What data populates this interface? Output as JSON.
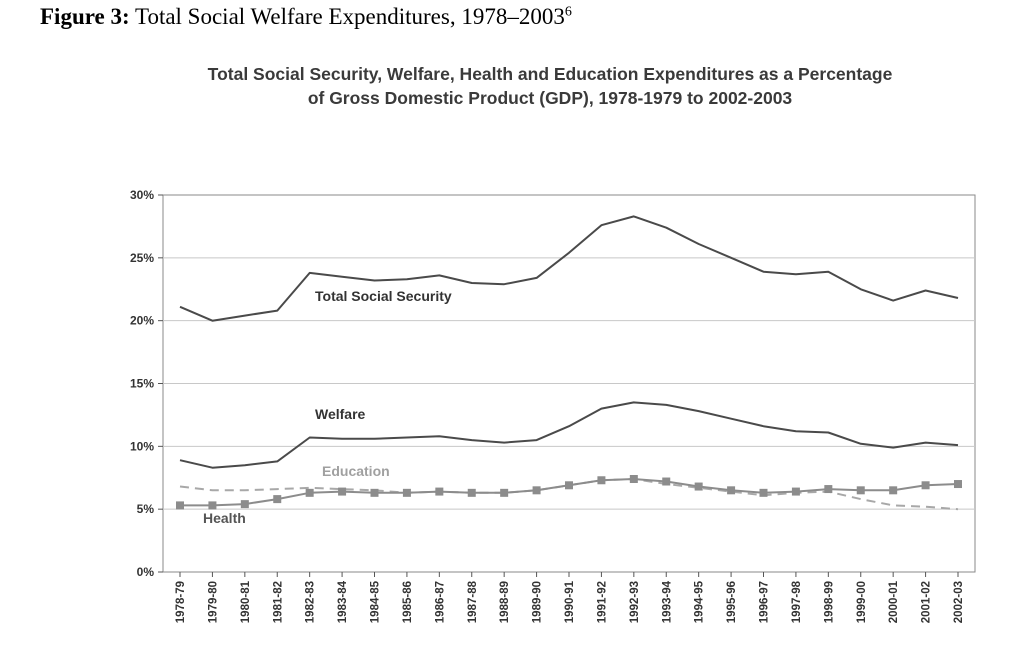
{
  "figure": {
    "label": "Figure 3:",
    "text": "Total Social Welfare Expenditures, 1978–2003",
    "footnote": "6"
  },
  "chart_data": {
    "type": "line",
    "title_lines": [
      "Total Social Security, Welfare, Health and Education Expenditures as a Percentage",
      "of Gross Domestic Product (GDP), 1978-1979 to 2002-2003"
    ],
    "xlabel": "",
    "ylabel": "",
    "ylim": [
      0,
      30
    ],
    "yticks": [
      "0%",
      "5%",
      "10%",
      "15%",
      "20%",
      "25%",
      "30%"
    ],
    "ytick_values": [
      0,
      5,
      10,
      15,
      20,
      25,
      30
    ],
    "grid": true,
    "legend": "inline labels",
    "categories": [
      "1978-79",
      "1979-80",
      "1980-81",
      "1981-82",
      "1982-83",
      "1983-84",
      "1984-85",
      "1985-86",
      "1986-87",
      "1987-88",
      "1988-89",
      "1989-90",
      "1990-91",
      "1991-92",
      "1992-93",
      "1993-94",
      "1994-95",
      "1995-96",
      "1996-97",
      "1997-98",
      "1998-99",
      "1999-00",
      "2000-01",
      "2001-02",
      "2002-03"
    ],
    "series": [
      {
        "name": "Total Social Security",
        "color": "#4a4a4a",
        "style": "solid",
        "marker": "none",
        "values": [
          21.1,
          20.0,
          20.4,
          20.8,
          23.8,
          23.5,
          23.2,
          23.3,
          23.6,
          23.0,
          22.9,
          23.4,
          25.4,
          27.6,
          28.3,
          27.4,
          26.1,
          25.0,
          23.9,
          23.7,
          23.9,
          22.5,
          21.6,
          22.4,
          21.8
        ]
      },
      {
        "name": "Welfare",
        "color": "#4a4a4a",
        "style": "solid",
        "marker": "none",
        "values": [
          8.9,
          8.3,
          8.5,
          8.8,
          10.7,
          10.6,
          10.6,
          10.7,
          10.8,
          10.5,
          10.3,
          10.5,
          11.6,
          13.0,
          13.5,
          13.3,
          12.8,
          12.2,
          11.6,
          11.2,
          11.1,
          10.2,
          9.9,
          10.3,
          10.1
        ]
      },
      {
        "name": "Education",
        "color": "#a8a8a8",
        "style": "dashed",
        "marker": "none",
        "values": [
          6.8,
          6.5,
          6.5,
          6.6,
          6.7,
          6.6,
          6.5,
          6.3,
          6.4,
          6.3,
          6.3,
          6.5,
          6.9,
          7.3,
          7.4,
          7.0,
          6.7,
          6.4,
          6.1,
          6.3,
          6.4,
          5.8,
          5.3,
          5.2,
          5.0
        ]
      },
      {
        "name": "Health",
        "color": "#8c8c8c",
        "style": "solid",
        "marker": "square",
        "values": [
          5.3,
          5.3,
          5.4,
          5.8,
          6.3,
          6.4,
          6.3,
          6.3,
          6.4,
          6.3,
          6.3,
          6.5,
          6.9,
          7.3,
          7.4,
          7.2,
          6.8,
          6.5,
          6.3,
          6.4,
          6.6,
          6.5,
          6.5,
          6.9,
          7.0
        ]
      }
    ]
  }
}
